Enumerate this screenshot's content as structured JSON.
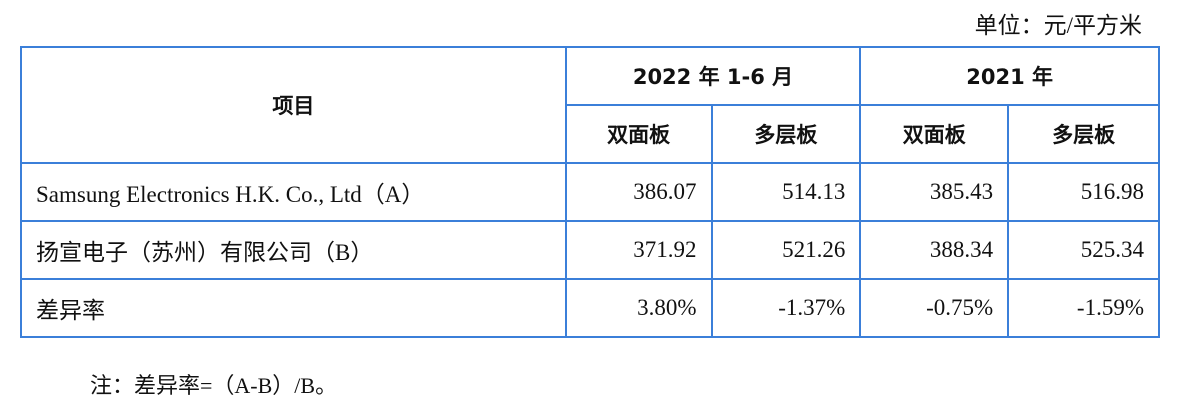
{
  "unit": "单位：元/平方米",
  "header": {
    "item": "项目",
    "period1": "2022 年 1-6 月",
    "period2": "2021 年",
    "sub": [
      "双面板",
      "多层板",
      "双面板",
      "多层板"
    ]
  },
  "rows": [
    {
      "label": "Samsung Electronics H.K. Co., Ltd（A）",
      "values": [
        "386.07",
        "514.13",
        "385.43",
        "516.98"
      ]
    },
    {
      "label": "扬宣电子（苏州）有限公司（B）",
      "values": [
        "371.92",
        "521.26",
        "388.34",
        "525.34"
      ]
    },
    {
      "label": "差异率",
      "values": [
        "3.80%",
        "-1.37%",
        "-0.75%",
        "-1.59%"
      ]
    }
  ],
  "note": "注：差异率=（A-B）/B。",
  "colors": {
    "border": "#3b7fd9"
  }
}
